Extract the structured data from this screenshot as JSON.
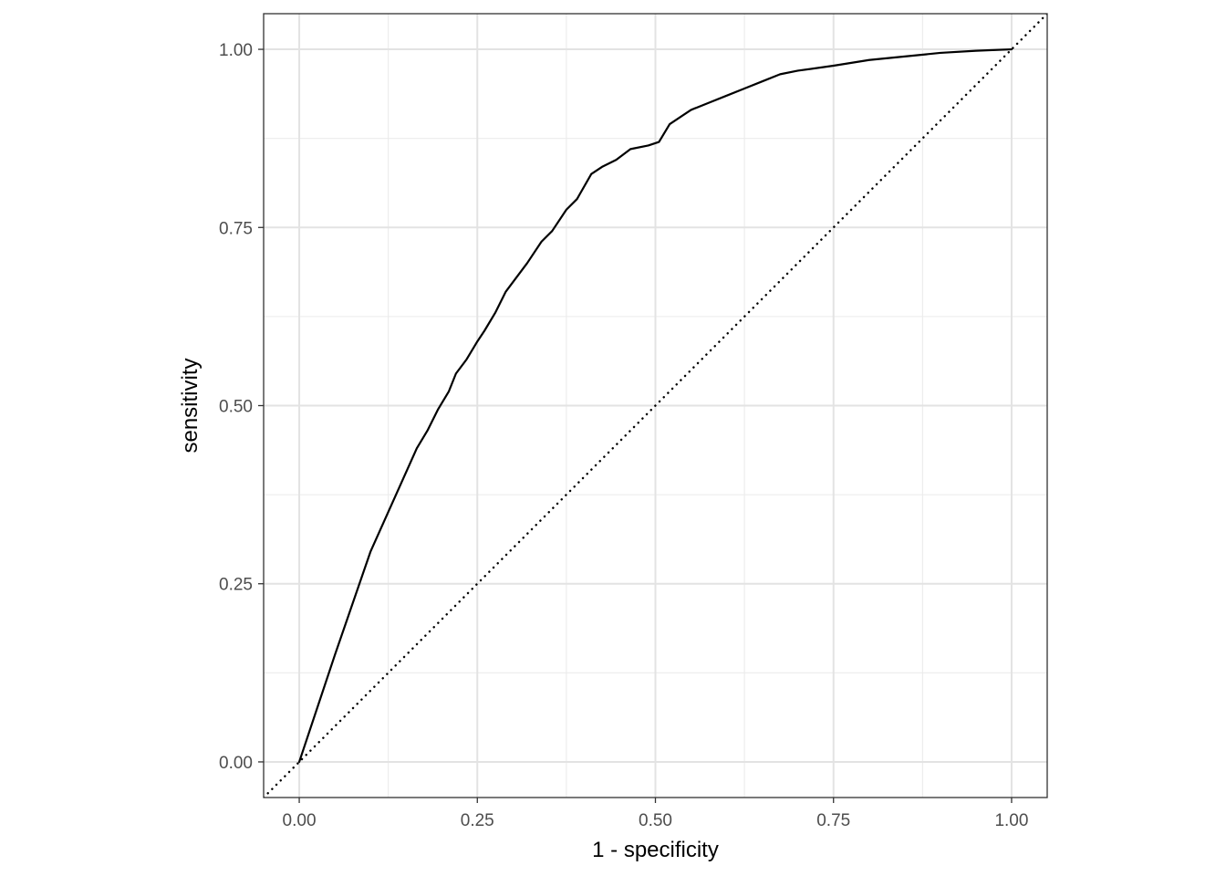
{
  "chart_data": {
    "type": "line",
    "title": "",
    "xlabel": "1 - specificity",
    "ylabel": "sensitivity",
    "xlim": [
      -0.05,
      1.05
    ],
    "ylim": [
      -0.05,
      1.05
    ],
    "grid": true,
    "aspect": "equal",
    "x_ticks": [
      {
        "value": 0,
        "label": "0.00"
      },
      {
        "value": 0.25,
        "label": "0.25"
      },
      {
        "value": 0.5,
        "label": "0.50"
      },
      {
        "value": 0.75,
        "label": "0.75"
      },
      {
        "value": 1,
        "label": "1.00"
      }
    ],
    "y_ticks": [
      {
        "value": 0,
        "label": "0.00"
      },
      {
        "value": 0.25,
        "label": "0.25"
      },
      {
        "value": 0.5,
        "label": "0.50"
      },
      {
        "value": 0.75,
        "label": "0.75"
      },
      {
        "value": 1,
        "label": "1.00"
      }
    ],
    "x_minor_ticks": [
      0.125,
      0.375,
      0.625,
      0.875
    ],
    "y_minor_ticks": [
      0.125,
      0.375,
      0.625,
      0.875
    ],
    "series": [
      {
        "style": "solid",
        "color": "#000000",
        "x": [
          0,
          0.05,
          0.1,
          0.165,
          0.18,
          0.195,
          0.21,
          0.22,
          0.235,
          0.25,
          0.26,
          0.275,
          0.29,
          0.305,
          0.32,
          0.34,
          0.355,
          0.375,
          0.39,
          0.41,
          0.425,
          0.445,
          0.465,
          0.49,
          0.505,
          0.52,
          0.55,
          0.575,
          0.6,
          0.625,
          0.65,
          0.675,
          0.7,
          0.75,
          0.8,
          0.85,
          0.9,
          0.95,
          1.0
        ],
        "y": [
          0,
          0.15,
          0.295,
          0.44,
          0.465,
          0.495,
          0.52,
          0.545,
          0.565,
          0.59,
          0.605,
          0.63,
          0.66,
          0.68,
          0.7,
          0.73,
          0.745,
          0.775,
          0.79,
          0.825,
          0.835,
          0.845,
          0.86,
          0.865,
          0.87,
          0.895,
          0.915,
          0.925,
          0.935,
          0.945,
          0.955,
          0.965,
          0.97,
          0.977,
          0.985,
          0.99,
          0.995,
          0.998,
          1.0
        ]
      },
      {
        "style": "dotted",
        "color": "#000000",
        "x": [
          -0.05,
          1.05
        ],
        "y": [
          -0.05,
          1.05
        ]
      }
    ]
  }
}
